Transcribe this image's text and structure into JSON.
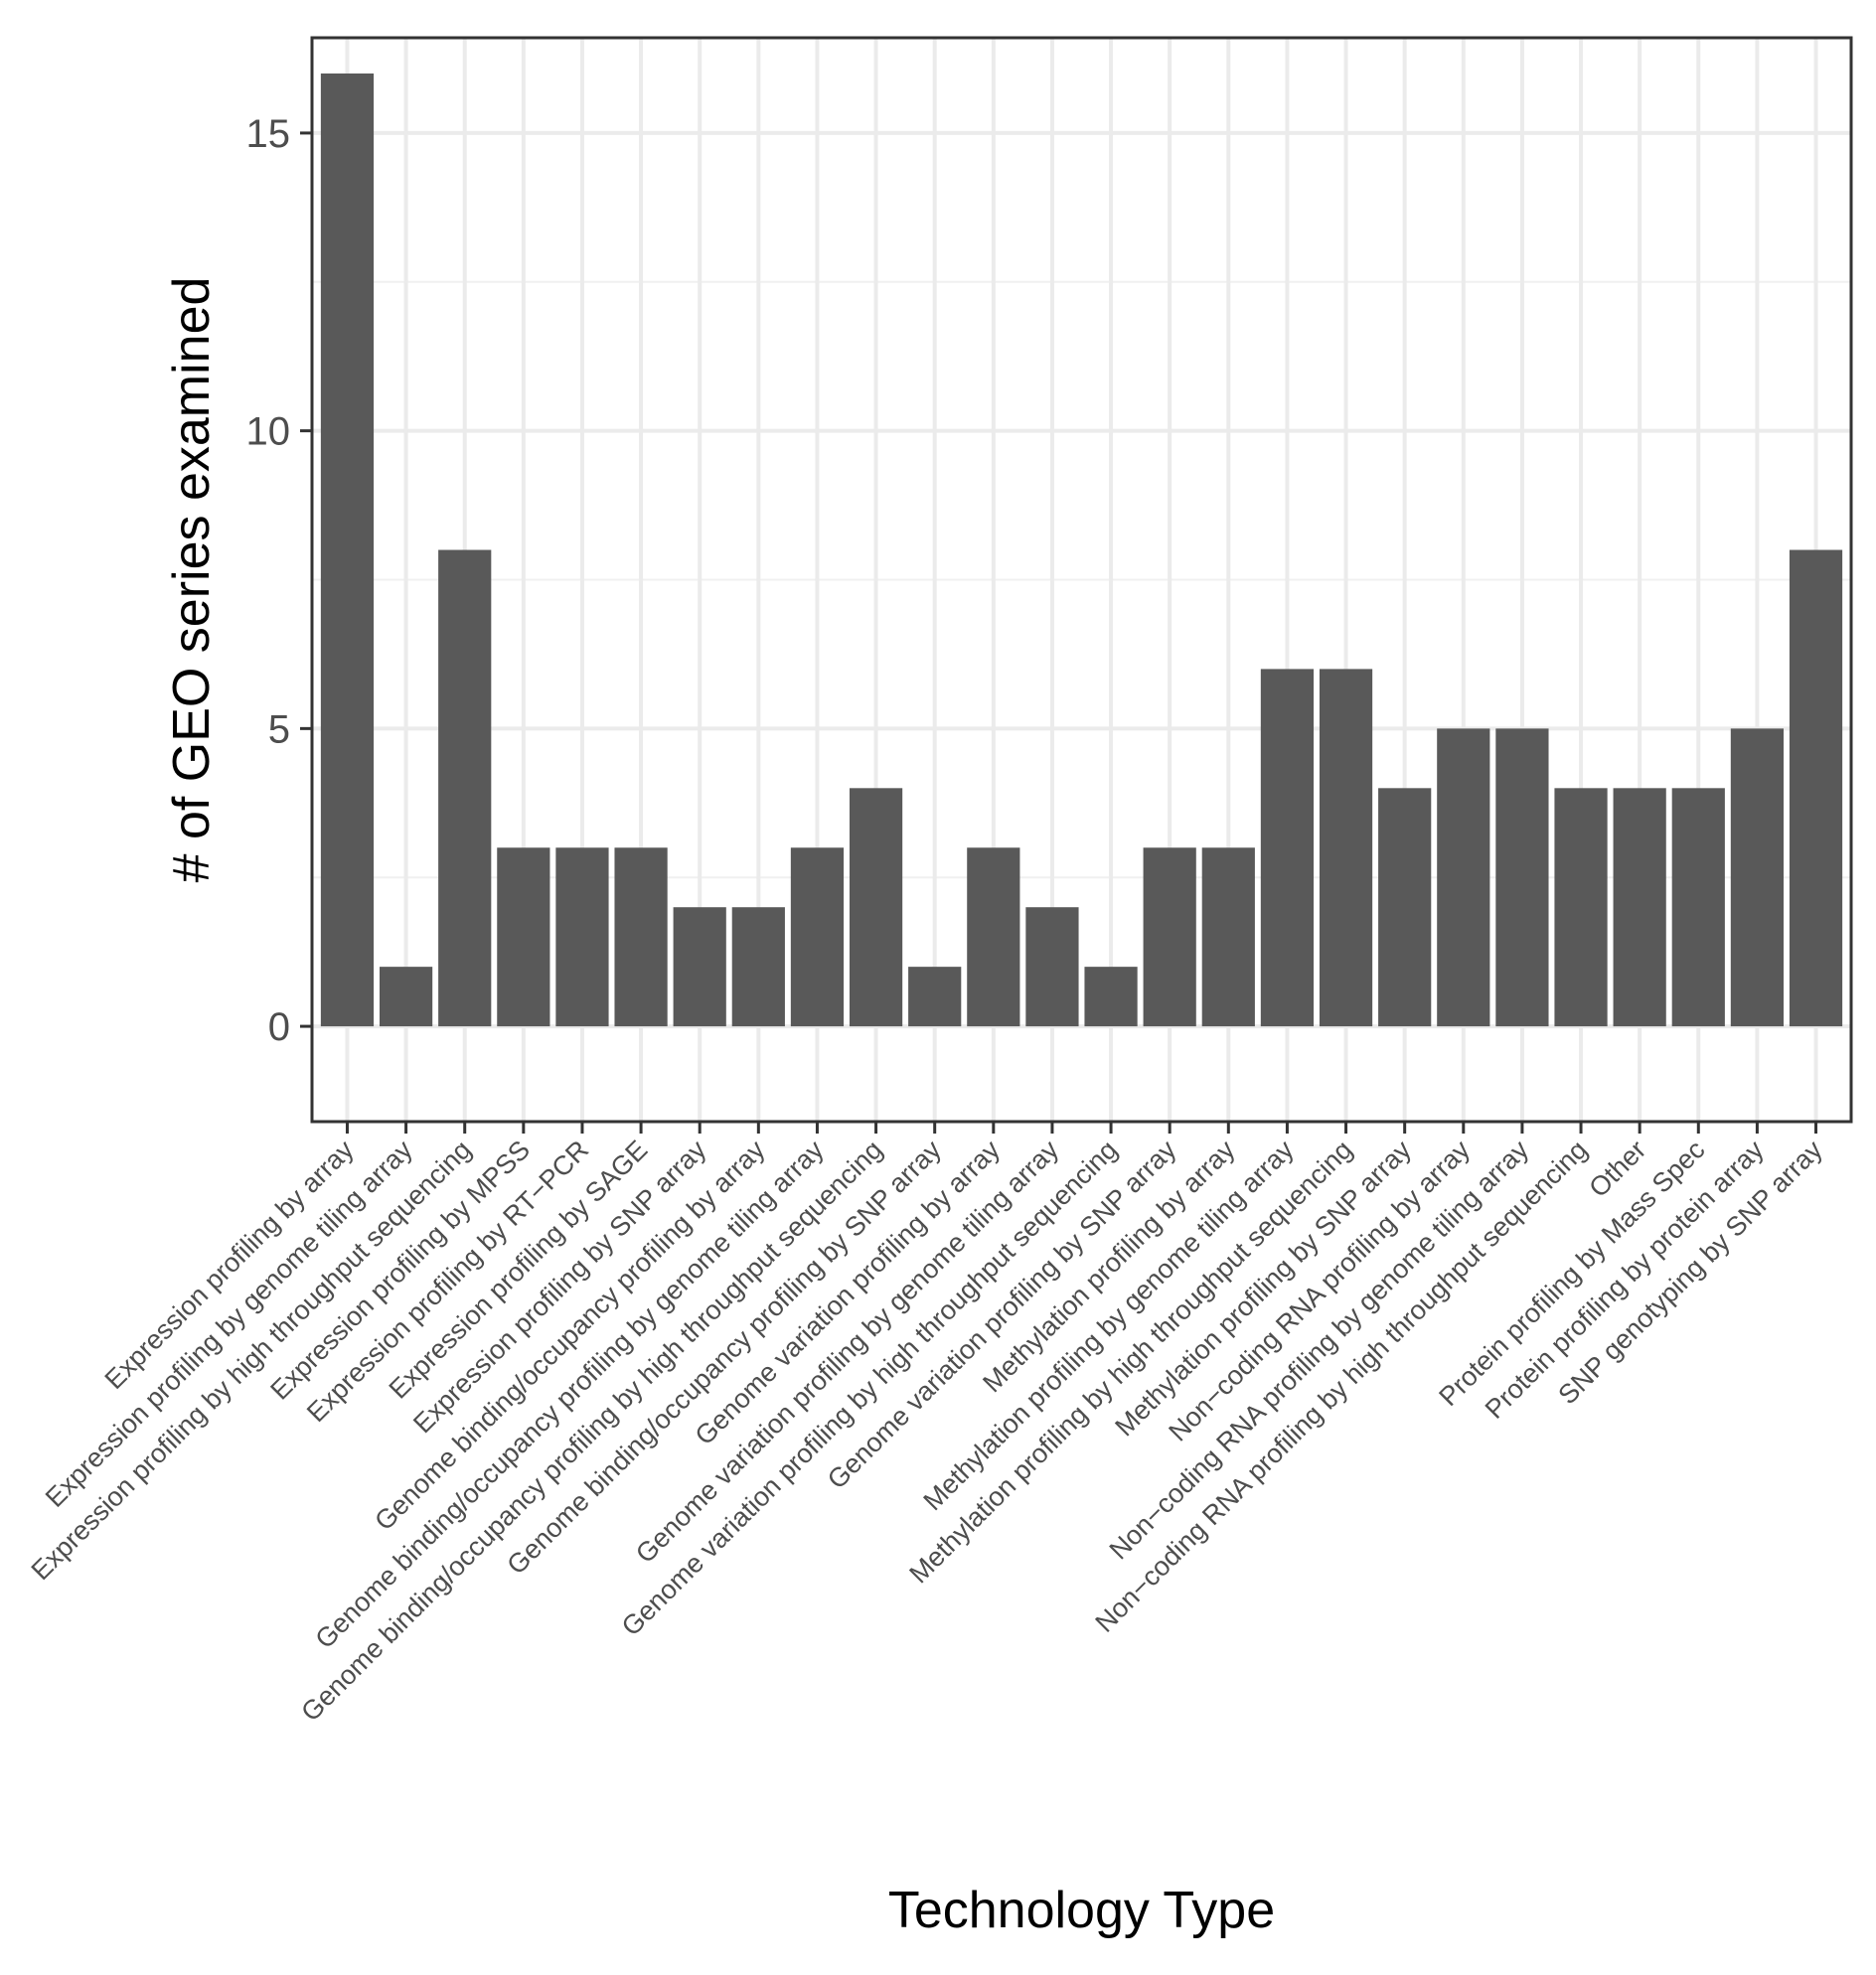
{
  "chart_data": {
    "type": "bar",
    "title": "",
    "xlabel": "Technology Type",
    "ylabel": "# of GEO series examined",
    "ylim": [
      -1.6,
      16.6
    ],
    "yticks": [
      0,
      5,
      10,
      15
    ],
    "grid": true,
    "bar_color": "#595959",
    "categories": [
      "Expression profiling by array",
      "Expression profiling by genome tiling array",
      "Expression profiling by high throughput sequencing",
      "Expression profiling by MPSS",
      "Expression profiling by RT−PCR",
      "Expression profiling by SAGE",
      "Expression profiling by SNP array",
      "Genome binding/occupancy profiling by array",
      "Genome binding/occupancy profiling by genome tiling array",
      "Genome binding/occupancy profiling by high throughput sequencing",
      "Genome binding/occupancy profiling by SNP array",
      "Genome variation profiling by array",
      "Genome variation profiling by genome tiling array",
      "Genome variation profiling by high throughput sequencing",
      "Genome variation profiling by SNP array",
      "Methylation profiling by array",
      "Methylation profiling by genome tiling array",
      "Methylation profiling by high throughput sequencing",
      "Methylation profiling by SNP array",
      "Non−coding RNA profiling by array",
      "Non−coding RNA profiling by genome tiling array",
      "Non−coding RNA profiling by high throughput sequencing",
      "Other",
      "Protein profiling by Mass Spec",
      "Protein profiling by protein array",
      "SNP genotyping by SNP array"
    ],
    "values": [
      16,
      1,
      8,
      3,
      3,
      3,
      2,
      2,
      3,
      4,
      1,
      3,
      2,
      1,
      3,
      3,
      6,
      6,
      4,
      5,
      5,
      4,
      4,
      4,
      5,
      8
    ]
  }
}
